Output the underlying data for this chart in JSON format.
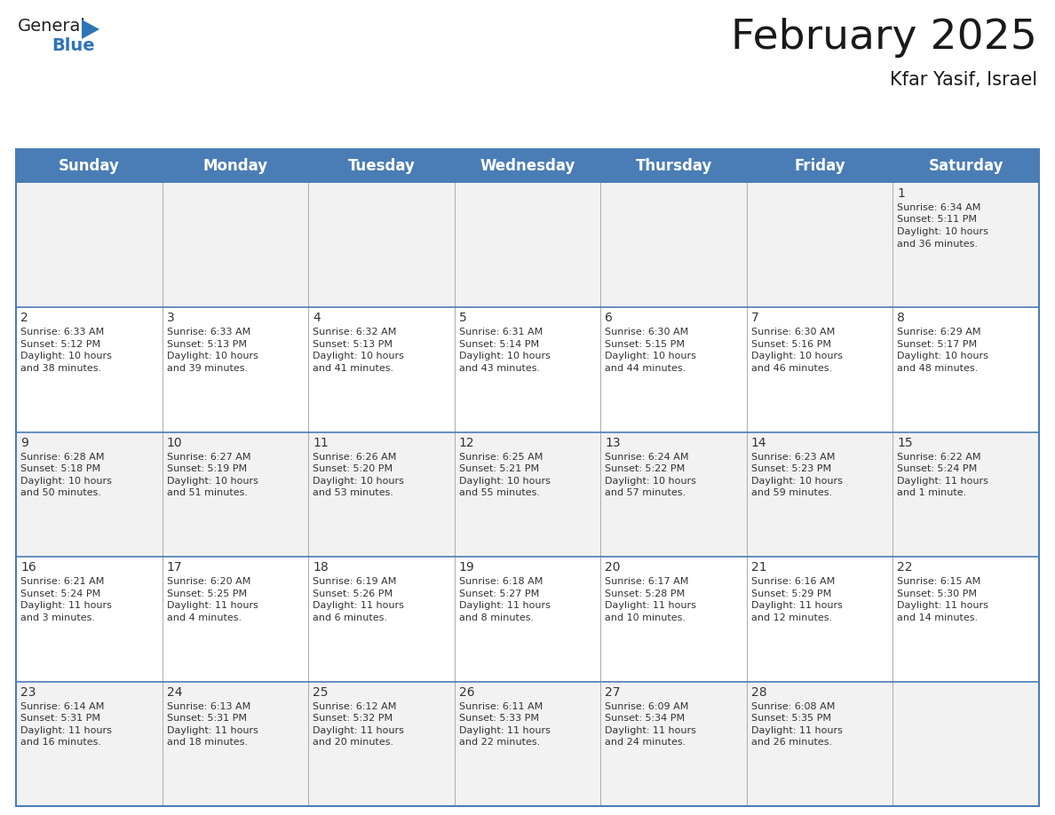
{
  "title": "February 2025",
  "subtitle": "Kfar Yasif, Israel",
  "header_bg": "#4A7DB5",
  "header_text_color": "#FFFFFF",
  "row_bg_odd": "#F2F2F2",
  "row_bg_even": "#FFFFFF",
  "border_color": "#4A7DB5",
  "cell_line_color": "#AAAAAA",
  "text_color": "#333333",
  "day_headers": [
    "Sunday",
    "Monday",
    "Tuesday",
    "Wednesday",
    "Thursday",
    "Friday",
    "Saturday"
  ],
  "days": [
    {
      "day": 1,
      "col": 6,
      "row": 0,
      "sunrise": "6:34 AM",
      "sunset": "5:11 PM",
      "daylight_h": "10 hours",
      "daylight_m": "and 36 minutes."
    },
    {
      "day": 2,
      "col": 0,
      "row": 1,
      "sunrise": "6:33 AM",
      "sunset": "5:12 PM",
      "daylight_h": "10 hours",
      "daylight_m": "and 38 minutes."
    },
    {
      "day": 3,
      "col": 1,
      "row": 1,
      "sunrise": "6:33 AM",
      "sunset": "5:13 PM",
      "daylight_h": "10 hours",
      "daylight_m": "and 39 minutes."
    },
    {
      "day": 4,
      "col": 2,
      "row": 1,
      "sunrise": "6:32 AM",
      "sunset": "5:13 PM",
      "daylight_h": "10 hours",
      "daylight_m": "and 41 minutes."
    },
    {
      "day": 5,
      "col": 3,
      "row": 1,
      "sunrise": "6:31 AM",
      "sunset": "5:14 PM",
      "daylight_h": "10 hours",
      "daylight_m": "and 43 minutes."
    },
    {
      "day": 6,
      "col": 4,
      "row": 1,
      "sunrise": "6:30 AM",
      "sunset": "5:15 PM",
      "daylight_h": "10 hours",
      "daylight_m": "and 44 minutes."
    },
    {
      "day": 7,
      "col": 5,
      "row": 1,
      "sunrise": "6:30 AM",
      "sunset": "5:16 PM",
      "daylight_h": "10 hours",
      "daylight_m": "and 46 minutes."
    },
    {
      "day": 8,
      "col": 6,
      "row": 1,
      "sunrise": "6:29 AM",
      "sunset": "5:17 PM",
      "daylight_h": "10 hours",
      "daylight_m": "and 48 minutes."
    },
    {
      "day": 9,
      "col": 0,
      "row": 2,
      "sunrise": "6:28 AM",
      "sunset": "5:18 PM",
      "daylight_h": "10 hours",
      "daylight_m": "and 50 minutes."
    },
    {
      "day": 10,
      "col": 1,
      "row": 2,
      "sunrise": "6:27 AM",
      "sunset": "5:19 PM",
      "daylight_h": "10 hours",
      "daylight_m": "and 51 minutes."
    },
    {
      "day": 11,
      "col": 2,
      "row": 2,
      "sunrise": "6:26 AM",
      "sunset": "5:20 PM",
      "daylight_h": "10 hours",
      "daylight_m": "and 53 minutes."
    },
    {
      "day": 12,
      "col": 3,
      "row": 2,
      "sunrise": "6:25 AM",
      "sunset": "5:21 PM",
      "daylight_h": "10 hours",
      "daylight_m": "and 55 minutes."
    },
    {
      "day": 13,
      "col": 4,
      "row": 2,
      "sunrise": "6:24 AM",
      "sunset": "5:22 PM",
      "daylight_h": "10 hours",
      "daylight_m": "and 57 minutes."
    },
    {
      "day": 14,
      "col": 5,
      "row": 2,
      "sunrise": "6:23 AM",
      "sunset": "5:23 PM",
      "daylight_h": "10 hours",
      "daylight_m": "and 59 minutes."
    },
    {
      "day": 15,
      "col": 6,
      "row": 2,
      "sunrise": "6:22 AM",
      "sunset": "5:24 PM",
      "daylight_h": "11 hours",
      "daylight_m": "and 1 minute."
    },
    {
      "day": 16,
      "col": 0,
      "row": 3,
      "sunrise": "6:21 AM",
      "sunset": "5:24 PM",
      "daylight_h": "11 hours",
      "daylight_m": "and 3 minutes."
    },
    {
      "day": 17,
      "col": 1,
      "row": 3,
      "sunrise": "6:20 AM",
      "sunset": "5:25 PM",
      "daylight_h": "11 hours",
      "daylight_m": "and 4 minutes."
    },
    {
      "day": 18,
      "col": 2,
      "row": 3,
      "sunrise": "6:19 AM",
      "sunset": "5:26 PM",
      "daylight_h": "11 hours",
      "daylight_m": "and 6 minutes."
    },
    {
      "day": 19,
      "col": 3,
      "row": 3,
      "sunrise": "6:18 AM",
      "sunset": "5:27 PM",
      "daylight_h": "11 hours",
      "daylight_m": "and 8 minutes."
    },
    {
      "day": 20,
      "col": 4,
      "row": 3,
      "sunrise": "6:17 AM",
      "sunset": "5:28 PM",
      "daylight_h": "11 hours",
      "daylight_m": "and 10 minutes."
    },
    {
      "day": 21,
      "col": 5,
      "row": 3,
      "sunrise": "6:16 AM",
      "sunset": "5:29 PM",
      "daylight_h": "11 hours",
      "daylight_m": "and 12 minutes."
    },
    {
      "day": 22,
      "col": 6,
      "row": 3,
      "sunrise": "6:15 AM",
      "sunset": "5:30 PM",
      "daylight_h": "11 hours",
      "daylight_m": "and 14 minutes."
    },
    {
      "day": 23,
      "col": 0,
      "row": 4,
      "sunrise": "6:14 AM",
      "sunset": "5:31 PM",
      "daylight_h": "11 hours",
      "daylight_m": "and 16 minutes."
    },
    {
      "day": 24,
      "col": 1,
      "row": 4,
      "sunrise": "6:13 AM",
      "sunset": "5:31 PM",
      "daylight_h": "11 hours",
      "daylight_m": "and 18 minutes."
    },
    {
      "day": 25,
      "col": 2,
      "row": 4,
      "sunrise": "6:12 AM",
      "sunset": "5:32 PM",
      "daylight_h": "11 hours",
      "daylight_m": "and 20 minutes."
    },
    {
      "day": 26,
      "col": 3,
      "row": 4,
      "sunrise": "6:11 AM",
      "sunset": "5:33 PM",
      "daylight_h": "11 hours",
      "daylight_m": "and 22 minutes."
    },
    {
      "day": 27,
      "col": 4,
      "row": 4,
      "sunrise": "6:09 AM",
      "sunset": "5:34 PM",
      "daylight_h": "11 hours",
      "daylight_m": "and 24 minutes."
    },
    {
      "day": 28,
      "col": 5,
      "row": 4,
      "sunrise": "6:08 AM",
      "sunset": "5:35 PM",
      "daylight_h": "11 hours",
      "daylight_m": "and 26 minutes."
    }
  ],
  "num_rows": 5,
  "num_cols": 7,
  "title_fontsize": 34,
  "subtitle_fontsize": 15,
  "header_fontsize": 12,
  "day_num_fontsize": 10,
  "cell_text_fontsize": 8
}
